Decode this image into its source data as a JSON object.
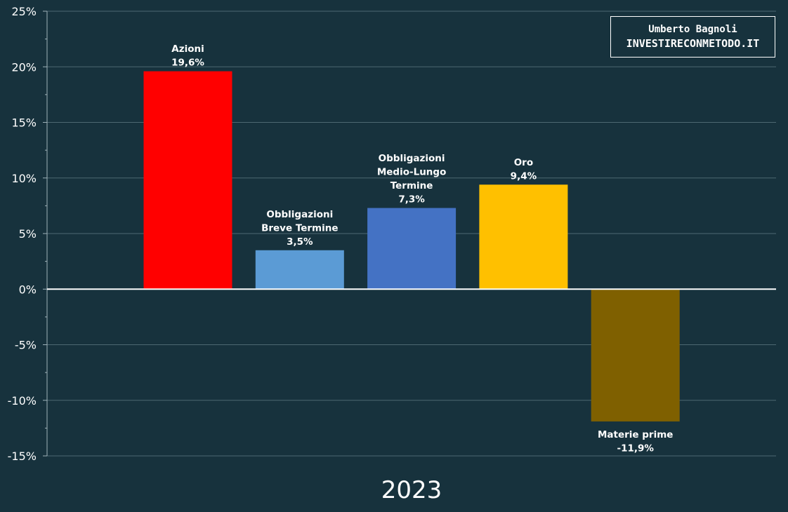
{
  "chart_data": {
    "type": "bar",
    "categories": [
      "Azioni",
      "Obbligazioni Breve Termine",
      "Obbligazioni Medio-Lungo Termine",
      "Oro",
      "Materie prime"
    ],
    "label_lines": [
      [
        "Azioni"
      ],
      [
        "Obbligazioni",
        "Breve Termine"
      ],
      [
        "Obbligazioni",
        "Medio-Lungo",
        "Termine"
      ],
      [
        "Oro"
      ],
      [
        "Materie prime"
      ]
    ],
    "values": [
      19.6,
      3.5,
      7.3,
      9.4,
      -11.9
    ],
    "value_labels": [
      "19,6%",
      "3,5%",
      "7,3%",
      "9,4%",
      "-11,9%"
    ],
    "colors": [
      "#ff0000",
      "#5b9bd5",
      "#4472c4",
      "#ffc000",
      "#7f6000"
    ],
    "xlabel": "2023",
    "ylim": [
      -15,
      25
    ],
    "yticks": [
      25,
      20,
      15,
      10,
      5,
      0,
      -5,
      -10,
      -15
    ],
    "ytick_labels": [
      "25%",
      "20%",
      "15%",
      "10%",
      "5%",
      "0%",
      "-5%",
      "-10%",
      "-15%"
    ],
    "grid": true,
    "legend": "none",
    "background": "#17323d"
  },
  "watermark": {
    "line1": "Umberto Bagnoli",
    "line2": "INVESTIRECONMETODO.IT"
  }
}
